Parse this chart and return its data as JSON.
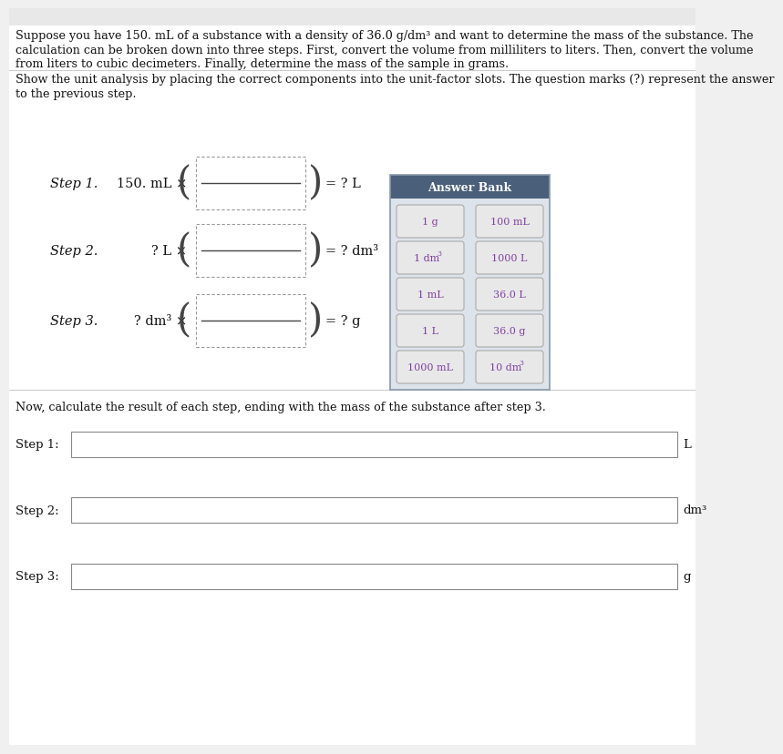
{
  "bg_color": "#ffffff",
  "page_bg": "#f0f0f0",
  "intro_lines": [
    "Suppose you have 150. mL of a substance with a density of 36.0 g/dm³ and want to determine the mass of the substance. The",
    "calculation can be broken down into three steps. First, convert the volume from milliliters to liters. Then, convert the volume",
    "from liters to cubic decimeters. Finally, determine the mass of the sample in grams."
  ],
  "show_lines": [
    "Show the unit analysis by placing the correct components into the unit-factor slots. The question marks (?) represent the answer",
    "to the previous step."
  ],
  "steps": [
    {
      "label": "Step 1.",
      "prefix": "150. mL ×",
      "suffix": "= ? L"
    },
    {
      "label": "Step 2.",
      "prefix": "? L ×",
      "suffix": "= ? dm³"
    },
    {
      "label": "Step 3.",
      "prefix": "? dm³ ×",
      "suffix": "= ? g"
    }
  ],
  "answer_bank_title": "Answer Bank",
  "answer_bank_header_color": "#4a5f7a",
  "answer_bank_body_color": "#dde3ea",
  "answer_bank_items": [
    [
      "1 g",
      "100 mL"
    ],
    [
      "1 dm³",
      "1000 L"
    ],
    [
      "1 mL",
      "36.0 L"
    ],
    [
      "1 L",
      "36.0 g"
    ],
    [
      "1000 mL",
      "10 dm³"
    ]
  ],
  "btn_text_color": "#8040a0",
  "btn_bg_color": "#e8e8e8",
  "btn_border_color": "#aaaaaa",
  "calc_intro": "Now, calculate the result of each step, ending with the mass of the substance after step 3.",
  "calc_steps": [
    {
      "label": "Step 1:",
      "unit": "L"
    },
    {
      "label": "Step 2:",
      "unit": "dm³"
    },
    {
      "label": "Step 3:",
      "unit": "g"
    }
  ],
  "text_color": "#111111",
  "dashed_color": "#999999",
  "line_color": "#444444",
  "separator_color": "#cccccc"
}
